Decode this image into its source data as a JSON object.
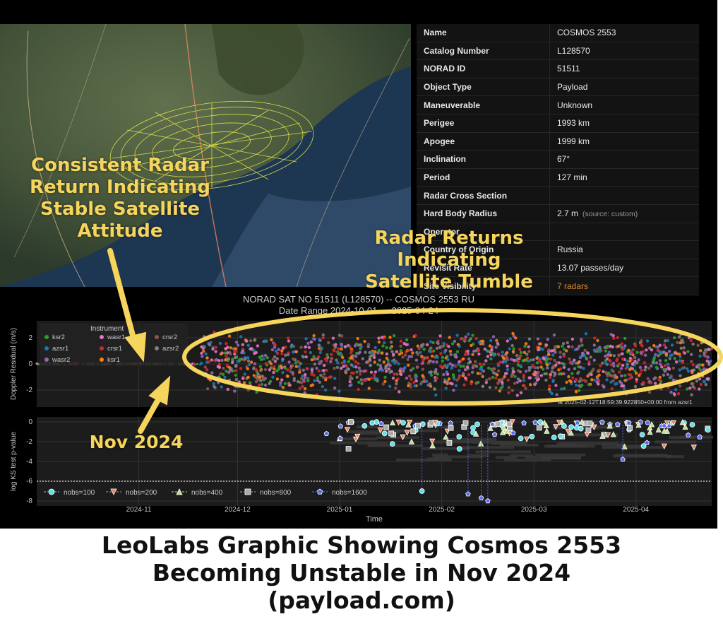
{
  "info_table": [
    {
      "label": "Name",
      "value": "COSMOS 2553"
    },
    {
      "label": "Catalog Number",
      "value": "L128570"
    },
    {
      "label": "NORAD ID",
      "value": "51511"
    },
    {
      "label": "Object Type",
      "value": "Payload"
    },
    {
      "label": "Maneuverable",
      "value": "Unknown"
    },
    {
      "label": "Perigee",
      "value": "1993 km"
    },
    {
      "label": "Apogee",
      "value": "1999 km"
    },
    {
      "label": "Inclination",
      "value": "67°"
    },
    {
      "label": "Period",
      "value": "127 min"
    },
    {
      "label": "Radar Cross Section",
      "value": ""
    },
    {
      "label": "Hard Body Radius",
      "value": "2.7 m",
      "note": "(source: custom)"
    },
    {
      "label": "Operator",
      "value": ""
    },
    {
      "label": "Country of Origin",
      "value": "Russia"
    },
    {
      "label": "Revisit Rate",
      "value": "13.07 passes/day"
    },
    {
      "label": "Site Visibility",
      "value": "7 radars",
      "color": "#e08a2a"
    }
  ],
  "plot": {
    "title_line1": "NORAD SAT NO 51511 (L128570) -- COSMOS 2553 RU",
    "title_line2": "Date Range 2024-10-01 — 2025-04-24",
    "annotation_text": "at 2025-02-12T18:59:39.922850+00:00 from azsr1"
  },
  "chart_data": [
    {
      "type": "scatter",
      "ylabel": "Doppler Residual (m/s)",
      "ylim": [
        -3.3,
        3.3
      ],
      "yticks": [
        "2",
        "0",
        "-2"
      ],
      "legend_title": "Instrument",
      "legend": [
        {
          "name": "ksr2",
          "color": "#2ca02c"
        },
        {
          "name": "wasr1",
          "color": "#e377c2"
        },
        {
          "name": "crsr2",
          "color": "#8c564b"
        },
        {
          "name": "azsr1",
          "color": "#1f77b4"
        },
        {
          "name": "crsr1",
          "color": "#d62728"
        },
        {
          "name": "azsr2",
          "color": "#7f7f7f"
        },
        {
          "name": "wasr2",
          "color": "#9467bd"
        },
        {
          "name": "ksr1",
          "color": "#ff7f0e"
        }
      ],
      "description_of_values": [
        {
          "period": "2024-10 to 2024-11-20",
          "residual_spread": 0.1
        },
        {
          "period": "2024-11-20 to 2025-04-24",
          "residual_spread": 2.5
        }
      ]
    },
    {
      "type": "scatter",
      "xlabel": "Time",
      "ylabel": "log KS test p-value",
      "ylim": [
        -8.5,
        0.5
      ],
      "yticks": [
        "0",
        "-2",
        "-4",
        "-6",
        "-8"
      ],
      "xticks": [
        "2024-11",
        "2024-12",
        "2025-01",
        "2025-02",
        "2025-03",
        "2025-04"
      ],
      "threshold": -6,
      "series": [
        {
          "name": "nobs=100",
          "marker": "circle",
          "color": "#5ee0e8"
        },
        {
          "name": "nobs=200",
          "marker": "triangle-down",
          "color": "#f07f5a"
        },
        {
          "name": "nobs=400",
          "marker": "triangle-up",
          "color": "#bde08a"
        },
        {
          "name": "nobs=800",
          "marker": "square",
          "color": "#aaaaaa"
        },
        {
          "name": "nobs=1600",
          "marker": "pentagon",
          "color": "#5a6cf0"
        }
      ],
      "outliers": [
        {
          "x": "2025-01-26",
          "y": -7.0
        },
        {
          "x": "2025-02-09",
          "y": -7.3
        },
        {
          "x": "2025-02-13",
          "y": -7.7
        },
        {
          "x": "2025-02-15",
          "y": -8.0
        },
        {
          "x": "2025-03-28",
          "y": -3.8
        }
      ]
    }
  ],
  "annotations": {
    "stable": "Consistent Radar Return Indicating Stable Satellite Attitude",
    "tumble": "Radar Returns Indicating Satellite Tumble",
    "nov": "Nov 2024"
  },
  "caption": {
    "line1": "LeoLabs Graphic Showing Cosmos 2553",
    "line2": "Becoming Unstable in Nov 2024",
    "line3": "(payload.com)"
  },
  "colors": {
    "annotation": "#f6d55c",
    "orbit": "#e6e84a",
    "background": "#000000"
  }
}
